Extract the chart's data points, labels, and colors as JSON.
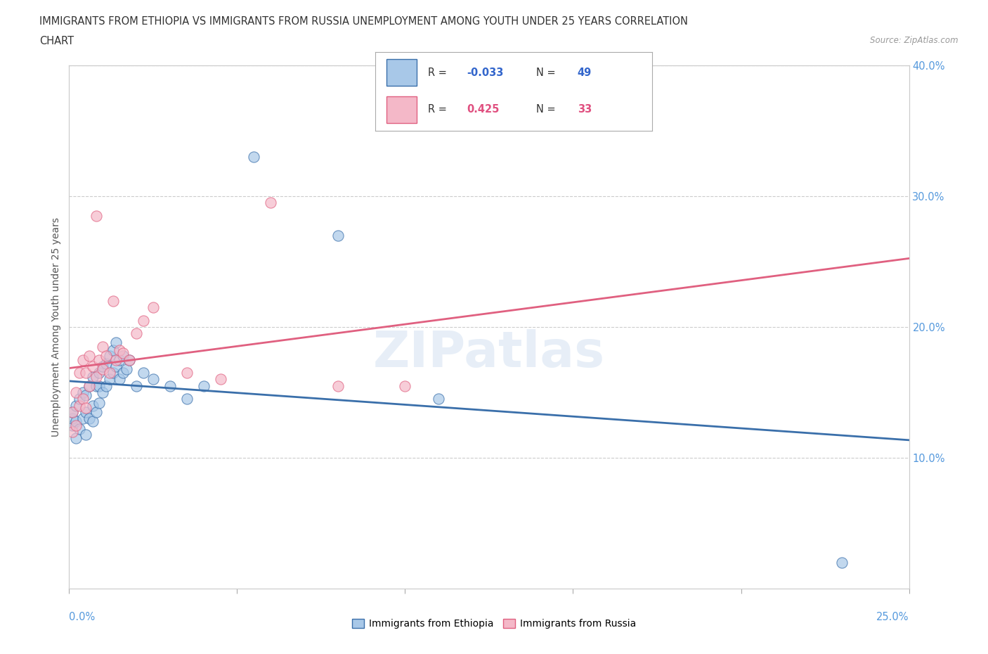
{
  "title_line1": "IMMIGRANTS FROM ETHIOPIA VS IMMIGRANTS FROM RUSSIA UNEMPLOYMENT AMONG YOUTH UNDER 25 YEARS CORRELATION",
  "title_line2": "CHART",
  "source": "Source: ZipAtlas.com",
  "ylabel": "Unemployment Among Youth under 25 years",
  "R_ethiopia": -0.033,
  "N_ethiopia": 49,
  "R_russia": 0.425,
  "N_russia": 33,
  "color_ethiopia": "#a8c8e8",
  "color_russia": "#f4b8c8",
  "color_ethiopia_line": "#3a6faa",
  "color_russia_line": "#e06080",
  "xlim": [
    0.0,
    0.25
  ],
  "ylim": [
    0.0,
    0.4
  ],
  "background_color": "#ffffff",
  "watermark": "ZIPatlas",
  "ethiopia_x": [
    0.001,
    0.001,
    0.001,
    0.002,
    0.002,
    0.002,
    0.003,
    0.003,
    0.004,
    0.004,
    0.005,
    0.005,
    0.005,
    0.006,
    0.006,
    0.007,
    0.007,
    0.007,
    0.008,
    0.008,
    0.009,
    0.009,
    0.009,
    0.01,
    0.01,
    0.011,
    0.011,
    0.012,
    0.012,
    0.013,
    0.013,
    0.014,
    0.014,
    0.015,
    0.015,
    0.016,
    0.016,
    0.017,
    0.018,
    0.02,
    0.022,
    0.025,
    0.03,
    0.035,
    0.04,
    0.055,
    0.08,
    0.11,
    0.23
  ],
  "ethiopia_y": [
    0.125,
    0.13,
    0.135,
    0.115,
    0.128,
    0.14,
    0.122,
    0.145,
    0.13,
    0.15,
    0.118,
    0.135,
    0.148,
    0.13,
    0.155,
    0.128,
    0.14,
    0.162,
    0.135,
    0.155,
    0.142,
    0.155,
    0.165,
    0.15,
    0.17,
    0.155,
    0.172,
    0.16,
    0.178,
    0.165,
    0.182,
    0.17,
    0.188,
    0.16,
    0.175,
    0.165,
    0.178,
    0.168,
    0.175,
    0.155,
    0.165,
    0.16,
    0.155,
    0.145,
    0.155,
    0.33,
    0.27,
    0.145,
    0.02
  ],
  "russia_x": [
    0.001,
    0.001,
    0.002,
    0.002,
    0.003,
    0.003,
    0.004,
    0.004,
    0.005,
    0.005,
    0.006,
    0.006,
    0.007,
    0.008,
    0.008,
    0.009,
    0.01,
    0.01,
    0.011,
    0.012,
    0.013,
    0.014,
    0.015,
    0.016,
    0.018,
    0.02,
    0.022,
    0.025,
    0.035,
    0.045,
    0.06,
    0.08,
    0.1
  ],
  "russia_y": [
    0.12,
    0.135,
    0.125,
    0.15,
    0.14,
    0.165,
    0.145,
    0.175,
    0.138,
    0.165,
    0.155,
    0.178,
    0.17,
    0.162,
    0.285,
    0.175,
    0.168,
    0.185,
    0.178,
    0.165,
    0.22,
    0.175,
    0.182,
    0.18,
    0.175,
    0.195,
    0.205,
    0.215,
    0.165,
    0.16,
    0.295,
    0.155,
    0.155
  ],
  "legend1_label": "Immigrants from Ethiopia",
  "legend2_label": "Immigrants from Russia",
  "yticks": [
    0.1,
    0.2,
    0.3,
    0.4
  ],
  "ytick_labels": [
    "10.0%",
    "20.0%",
    "30.0%",
    "40.0%"
  ],
  "xtick_label_left": "0.0%",
  "xtick_label_right": "25.0%"
}
